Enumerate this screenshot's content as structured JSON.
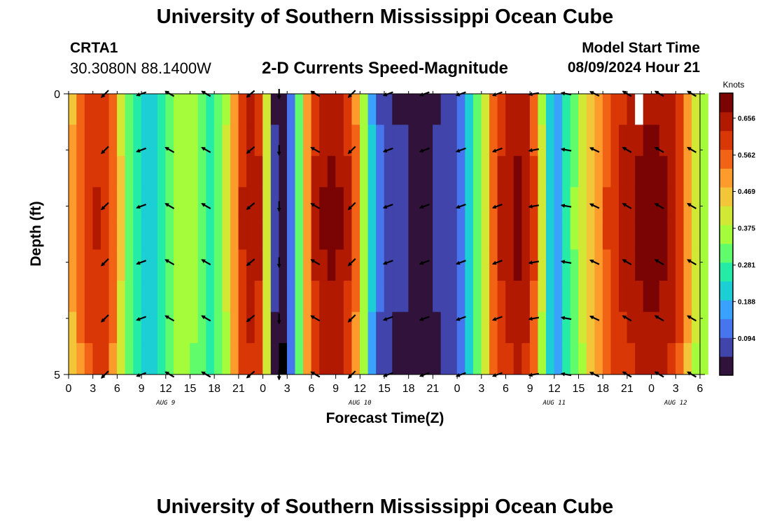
{
  "header": {
    "title": "University of Southern Mississippi Ocean Cube",
    "station_name": "CRTA1",
    "station_coords": "30.3080N  88.1400W",
    "chart_title": "2-D Currents Speed-Magnitude",
    "model_start_label": "Model Start Time",
    "model_start_value": "08/09/2024 Hour 21"
  },
  "footer": {
    "title": "University of Southern Mississippi Ocean Cube"
  },
  "colors": {
    "palette": [
      "#30123b",
      "#4145ab",
      "#4675ed",
      "#39a2fc",
      "#1bcfd4",
      "#24eca6",
      "#61fc6c",
      "#a4fc3b",
      "#d1e834",
      "#f3c63a",
      "#fe9b2d",
      "#f36315",
      "#d93806",
      "#b11901",
      "#7a0403"
    ],
    "missing": "#ffffff",
    "black_cell": "#000000"
  },
  "chart_data": {
    "type": "heatmap",
    "title": "2-D Currents Speed-Magnitude",
    "xlabel": "Forecast Time(Z)",
    "ylabel": "Depth (ft)",
    "ylim": [
      5,
      0
    ],
    "y_ticks": [
      "0",
      "5"
    ],
    "x_ticks": [
      "0",
      "3",
      "6",
      "9",
      "12",
      "15",
      "18",
      "21",
      "0",
      "3",
      "6",
      "9",
      "12",
      "15",
      "18",
      "21",
      "0",
      "3",
      "6",
      "9",
      "12",
      "15",
      "18",
      "21",
      "0",
      "3",
      "6"
    ],
    "date_labels": [
      {
        "label": "AUG 9",
        "hour": 12
      },
      {
        "label": "AUG 10",
        "hour": 36
      },
      {
        "label": "AUG 11",
        "hour": 60
      },
      {
        "label": "AUG 12",
        "hour": 75
      }
    ],
    "x_range_hours": [
      0,
      78
    ],
    "depth_rows": 9,
    "colorbar": {
      "unit": "Knots",
      "min": 0.0,
      "max": 0.72,
      "ticks": [
        "0.656",
        "0.562",
        "0.469",
        "0.375",
        "0.281",
        "0.188",
        "0.094"
      ]
    },
    "speed_by_hour": [
      0.5,
      0.56,
      0.61,
      0.63,
      0.62,
      0.56,
      0.44,
      0.33,
      0.26,
      0.22,
      0.23,
      0.27,
      0.32,
      0.37,
      0.38,
      0.36,
      0.31,
      0.28,
      0.31,
      0.4,
      0.53,
      0.63,
      0.67,
      0.64,
      0.43,
      0.05,
      0.02,
      0.14,
      0.33,
      0.52,
      0.64,
      0.68,
      0.69,
      0.68,
      0.64,
      0.55,
      0.37,
      0.2,
      0.1,
      0.06,
      0.05,
      0.05,
      0.04,
      0.04,
      0.04,
      0.05,
      0.06,
      0.08,
      0.13,
      0.21,
      0.31,
      0.43,
      0.57,
      0.64,
      0.67,
      0.69,
      0.67,
      0.59,
      0.4,
      0.22,
      0.19,
      0.26,
      0.34,
      0.41,
      0.48,
      0.53,
      0.58,
      0.62,
      0.65,
      0.67,
      0.69,
      0.7,
      0.7,
      0.69,
      0.66,
      0.61,
      0.51,
      0.41,
      0.37
    ],
    "missing_cells": [
      {
        "hour": 70,
        "depth_row": 0
      }
    ],
    "black_cells": [
      {
        "hour": 26,
        "depth_row": 8
      }
    ],
    "vectors": {
      "columns_hours": [
        4.5,
        9,
        12.5,
        17,
        22.5,
        26,
        30.5,
        35,
        39.5,
        44,
        48.5,
        53,
        57.5,
        61.5,
        65,
        69,
        73,
        77
      ],
      "rows_depth": [
        0,
        1,
        2,
        3,
        4,
        5
      ],
      "directions_deg": [
        135,
        160,
        210,
        210,
        140,
        90,
        210,
        135,
        160,
        160,
        160,
        160,
        170,
        190,
        205,
        210,
        210,
        210
      ]
    }
  }
}
